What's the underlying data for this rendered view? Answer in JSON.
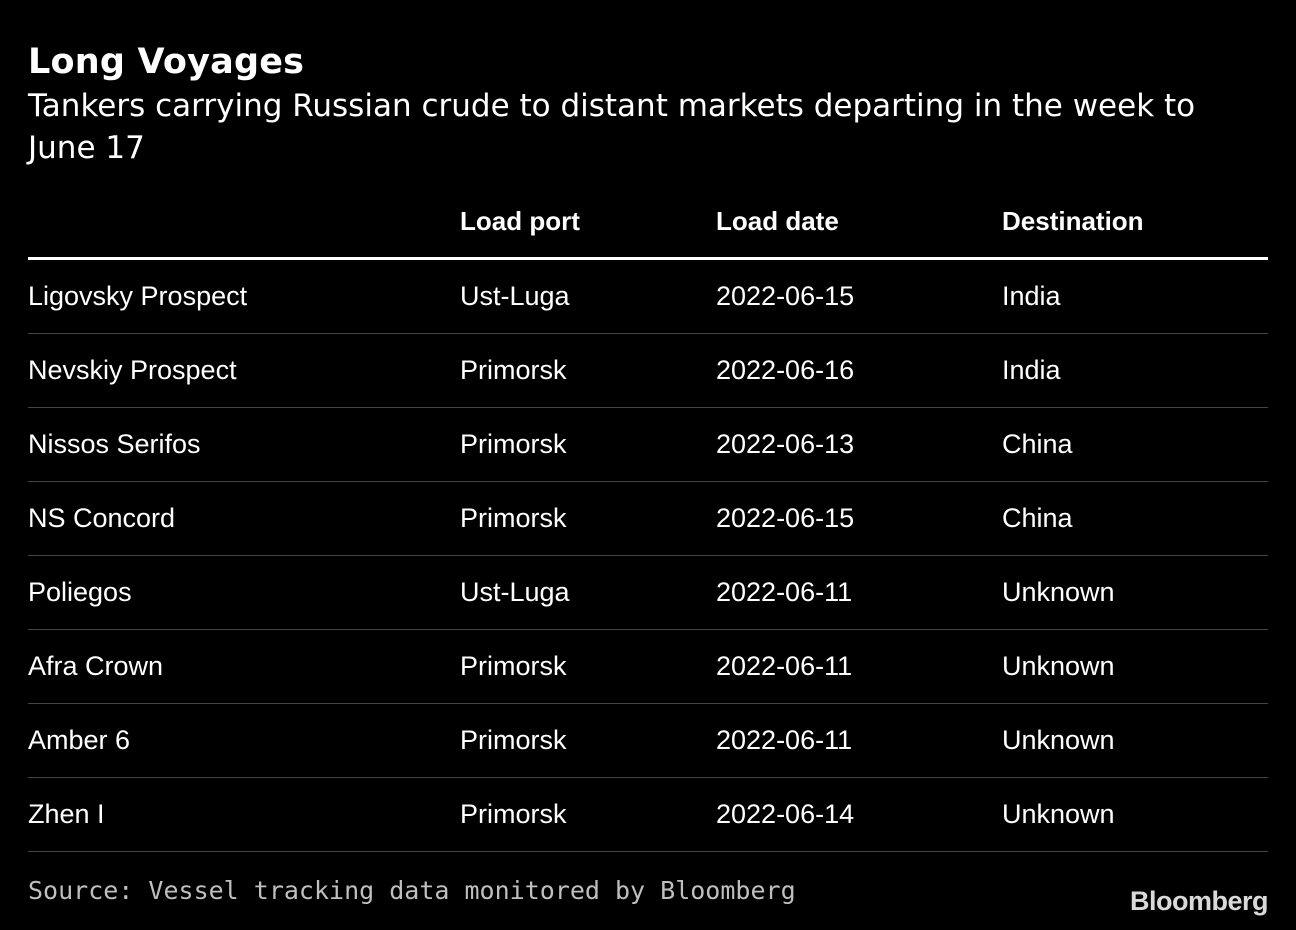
{
  "title": "Long Voyages",
  "subtitle": "Tankers carrying Russian crude to distant markets departing in the week to June 17",
  "chart_data": {
    "type": "table",
    "title": "Long Voyages",
    "subtitle": "Tankers carrying Russian crude to distant markets departing in the week to June 17",
    "columns": [
      "",
      "Load port",
      "Load date",
      "Destination"
    ],
    "rows": [
      [
        "Ligovsky Prospect",
        "Ust-Luga",
        "2022-06-15",
        "India"
      ],
      [
        "Nevskiy Prospect",
        "Primorsk",
        "2022-06-16",
        "India"
      ],
      [
        "Nissos Serifos",
        "Primorsk",
        "2022-06-13",
        "China"
      ],
      [
        "NS Concord",
        "Primorsk",
        "2022-06-15",
        "China"
      ],
      [
        "Poliegos",
        "Ust-Luga",
        "2022-06-11",
        "Unknown"
      ],
      [
        "Afra Crown",
        "Primorsk",
        "2022-06-11",
        "Unknown"
      ],
      [
        "Amber 6",
        "Primorsk",
        "2022-06-11",
        "Unknown"
      ],
      [
        "Zhen I",
        "Primorsk",
        "2022-06-14",
        "Unknown"
      ]
    ]
  },
  "source": "Source: Vessel tracking data monitored by Bloomberg",
  "brand": "Bloomberg"
}
